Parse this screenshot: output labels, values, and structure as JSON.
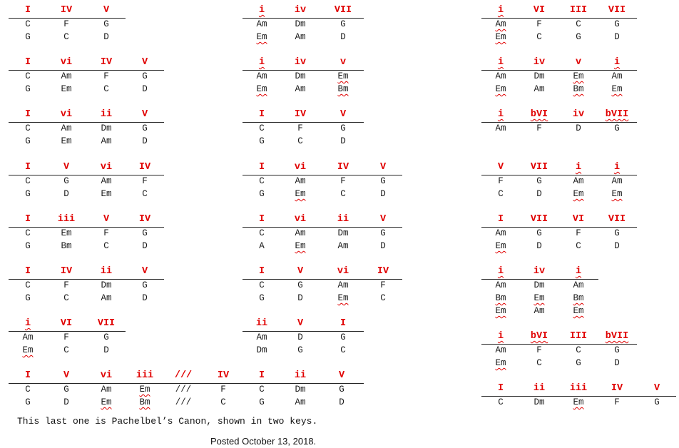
{
  "blocks": [
    {
      "id": "l1",
      "header": [
        "I",
        "IV",
        "V"
      ],
      "rows": [
        [
          "C",
          "F",
          "G"
        ],
        [
          "G",
          "C",
          "D"
        ]
      ]
    },
    {
      "id": "l2",
      "header": [
        "I",
        "vi",
        "IV",
        "V"
      ],
      "rows": [
        [
          "C",
          "Am",
          "F",
          "G"
        ],
        [
          "G",
          "Em",
          "C",
          "D"
        ]
      ]
    },
    {
      "id": "l3",
      "header": [
        "I",
        "vi",
        "ii",
        "V"
      ],
      "rows": [
        [
          "C",
          "Am",
          "Dm",
          "G"
        ],
        [
          "G",
          "Em",
          "Am",
          "D"
        ]
      ]
    },
    {
      "id": "l4",
      "header": [
        "I",
        "V",
        "vi",
        "IV"
      ],
      "rows": [
        [
          "C",
          "G",
          "Am",
          "F"
        ],
        [
          "G",
          "D",
          "Em",
          "C"
        ]
      ]
    },
    {
      "id": "l5",
      "header": [
        "I",
        "iii",
        "V",
        "IV"
      ],
      "rows": [
        [
          "C",
          "Em",
          "F",
          "G"
        ],
        [
          "G",
          "Bm",
          "C",
          "D"
        ]
      ]
    },
    {
      "id": "l6",
      "header": [
        "I",
        "IV",
        "ii",
        "V"
      ],
      "rows": [
        [
          "C",
          "F",
          "Dm",
          "G"
        ],
        [
          "G",
          "C",
          "Am",
          "D"
        ]
      ]
    },
    {
      "id": "l7",
      "header": [
        "i",
        "VI",
        "VII"
      ],
      "rows": [
        [
          "Am",
          "F",
          "G"
        ],
        [
          "Em",
          "C",
          "D"
        ]
      ]
    },
    {
      "id": "canon",
      "header": [
        "I",
        "V",
        "vi",
        "iii",
        "///",
        "IV",
        "I",
        "ii",
        "V"
      ],
      "rows": [
        [
          "C",
          "G",
          "Am",
          "Em",
          "///",
          "F",
          "C",
          "Dm",
          "G"
        ],
        [
          "G",
          "D",
          "Em",
          "Bm",
          "///",
          "C",
          "G",
          "Am",
          "D"
        ]
      ]
    },
    {
      "id": "m1",
      "header": [
        "i",
        "iv",
        "VII"
      ],
      "rows": [
        [
          "Am",
          "Dm",
          "G"
        ],
        [
          "Em",
          "Am",
          "D"
        ]
      ]
    },
    {
      "id": "m2",
      "header": [
        "i",
        "iv",
        "v"
      ],
      "rows": [
        [
          "Am",
          "Dm",
          "Em"
        ],
        [
          "Em",
          "Am",
          "Bm"
        ]
      ]
    },
    {
      "id": "m3",
      "header": [
        "I",
        "IV",
        "V"
      ],
      "rows": [
        [
          "C",
          "F",
          "G"
        ],
        [
          "G",
          "C",
          "D"
        ]
      ]
    },
    {
      "id": "m4",
      "header": [
        "I",
        "vi",
        "IV",
        "V"
      ],
      "rows": [
        [
          "C",
          "Am",
          "F",
          "G"
        ],
        [
          "G",
          "Em",
          "C",
          "D"
        ]
      ]
    },
    {
      "id": "m5",
      "header": [
        "I",
        "vi",
        "ii",
        "V"
      ],
      "rows": [
        [
          "C",
          "Am",
          "Dm",
          "G"
        ],
        [
          "A",
          "Em",
          "Am",
          "D"
        ]
      ]
    },
    {
      "id": "m6",
      "header": [
        "I",
        "V",
        "vi",
        "IV"
      ],
      "rows": [
        [
          "C",
          "G",
          "Am",
          "F"
        ],
        [
          "G",
          "D",
          "Em",
          "C"
        ]
      ]
    },
    {
      "id": "m7",
      "header": [
        "ii",
        "V",
        "I"
      ],
      "rows": [
        [
          "Am",
          "D",
          "G"
        ],
        [
          "Dm",
          "G",
          "C"
        ]
      ]
    },
    {
      "id": "r1",
      "header": [
        "i",
        "VI",
        "III",
        "VII"
      ],
      "rows": [
        [
          "Am",
          "F",
          "C",
          "G"
        ],
        [
          "Em",
          "C",
          "G",
          "D"
        ]
      ]
    },
    {
      "id": "r2",
      "header": [
        "i",
        "iv",
        "v",
        "i"
      ],
      "rows": [
        [
          "Am",
          "Dm",
          "Em",
          "Am"
        ],
        [
          "Em",
          "Am",
          "Bm",
          "Em"
        ]
      ]
    },
    {
      "id": "r3",
      "header": [
        "i",
        "bVI",
        "iv",
        "bVII"
      ],
      "rows": [
        [
          "Am",
          "F",
          "D",
          "G"
        ]
      ]
    },
    {
      "id": "r4",
      "header": [
        "V",
        "VII",
        "i",
        "i"
      ],
      "rows": [
        [
          "F",
          "G",
          "Am",
          "Am"
        ],
        [
          "C",
          "D",
          "Em",
          "Em"
        ]
      ]
    },
    {
      "id": "r5",
      "header": [
        "I",
        "VII",
        "VI",
        "VII"
      ],
      "rows": [
        [
          "Am",
          "G",
          "F",
          "G"
        ],
        [
          "Em",
          "D",
          "C",
          "D"
        ]
      ]
    },
    {
      "id": "r6",
      "header": [
        "i",
        "iv",
        "i"
      ],
      "rows": [
        [
          "Am",
          "Dm",
          "Am"
        ],
        [
          "Bm",
          "Em",
          "Bm"
        ],
        [
          "Em",
          "Am",
          "Em"
        ]
      ]
    },
    {
      "id": "r7",
      "header": [
        "i",
        "bVI",
        "III",
        "bVII"
      ],
      "rows": [
        [
          "Am",
          "F",
          "C",
          "G"
        ],
        [
          "Em",
          "C",
          "G",
          "D"
        ]
      ]
    },
    {
      "id": "r8",
      "header": [
        "I",
        "ii",
        "iii",
        "IV",
        "V"
      ],
      "rows": [
        [
          "C",
          "Dm",
          "Em",
          "F",
          "G"
        ]
      ]
    }
  ],
  "caption": "This last one is Pachelbel’s Canon, shown in two keys.",
  "posted": "Posted October 13, 2018."
}
